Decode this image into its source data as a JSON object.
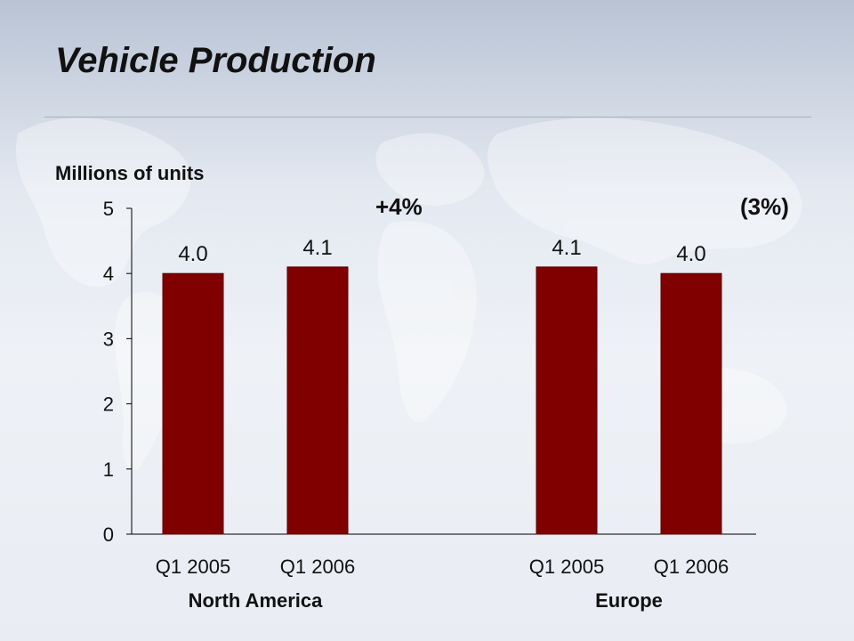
{
  "slide": {
    "title": "Vehicle Production",
    "subtitle": "Millions of units"
  },
  "change_labels": {
    "north_america": "+4%",
    "europe": "(3%)"
  },
  "colors": {
    "bar": "#800000",
    "axis": "#000000",
    "text": "#111111"
  },
  "chart_data": {
    "type": "bar",
    "title": "",
    "ylabel": "Millions of units",
    "xlabel": "",
    "ylim": [
      0,
      5
    ],
    "yticks": [
      0,
      1,
      2,
      3,
      4,
      5
    ],
    "grid": false,
    "legend": "none",
    "groups": [
      {
        "name": "North America",
        "change": "+4%",
        "categories": [
          "Q1 2005",
          "Q1 2006"
        ],
        "values": [
          4.0,
          4.1
        ],
        "value_labels": [
          "4.0",
          "4.1"
        ]
      },
      {
        "name": "Europe",
        "change": "(3%)",
        "categories": [
          "Q1 2005",
          "Q1 2006"
        ],
        "values": [
          4.1,
          4.0
        ],
        "value_labels": [
          "4.1",
          "4.0"
        ]
      }
    ]
  }
}
